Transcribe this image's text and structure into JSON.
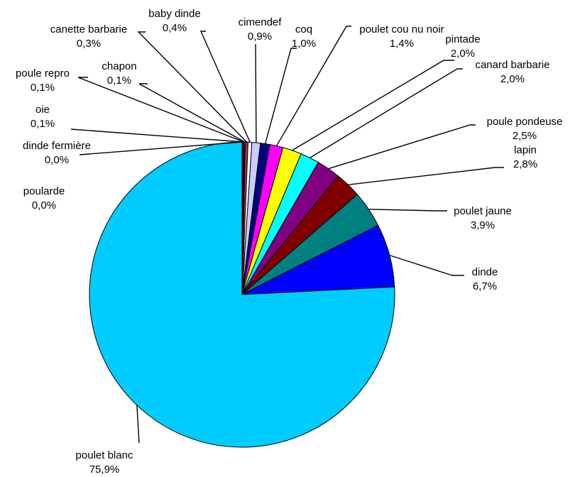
{
  "chart_data": {
    "type": "pie",
    "title": "",
    "start_angle_deg": 0,
    "direction": "clockwise",
    "slices": [
      {
        "name": "poularde",
        "value": 0.0,
        "label_value": "0,0%",
        "color": "#ff9933"
      },
      {
        "name": "dinde fermière",
        "value": 0.03,
        "label_value": "0,0%",
        "color": "#ffcc99"
      },
      {
        "name": "oie",
        "value": 0.1,
        "label_value": "0,1%",
        "color": "#666666"
      },
      {
        "name": "poule repro",
        "value": 0.1,
        "label_value": "0,1%",
        "color": "#999999"
      },
      {
        "name": "chapon",
        "value": 0.1,
        "label_value": "0,1%",
        "color": "#ff0000"
      },
      {
        "name": "canette barbarie",
        "value": 0.3,
        "label_value": "0,3%",
        "color": "#993366"
      },
      {
        "name": "baby dinde",
        "value": 0.4,
        "label_value": "0,4%",
        "color": "#ffffff"
      },
      {
        "name": "cimendef",
        "value": 0.9,
        "label_value": "0,9%",
        "color": "#ccccff"
      },
      {
        "name": "coq",
        "value": 1.0,
        "label_value": "1,0%",
        "color": "#000080"
      },
      {
        "name": "poulet cou nu noir",
        "value": 1.4,
        "label_value": "1,4%",
        "color": "#ff00ff"
      },
      {
        "name": "pintade",
        "value": 2.0,
        "label_value": "2,0%",
        "color": "#ffff00"
      },
      {
        "name": "canard barbarie",
        "value": 2.0,
        "label_value": "2,0%",
        "color": "#00ffff"
      },
      {
        "name": "poule pondeuse",
        "value": 2.5,
        "label_value": "2,5%",
        "color": "#800080"
      },
      {
        "name": "lapin",
        "value": 2.8,
        "label_value": "2,8%",
        "color": "#800000"
      },
      {
        "name": "poulet jaune",
        "value": 3.9,
        "label_value": "3,9%",
        "color": "#008080"
      },
      {
        "name": "dinde",
        "value": 6.7,
        "label_value": "6,7%",
        "color": "#0000ff"
      },
      {
        "name": "poulet blanc",
        "value": 75.9,
        "label_value": "75,9%",
        "color": "#00ccff"
      }
    ]
  }
}
